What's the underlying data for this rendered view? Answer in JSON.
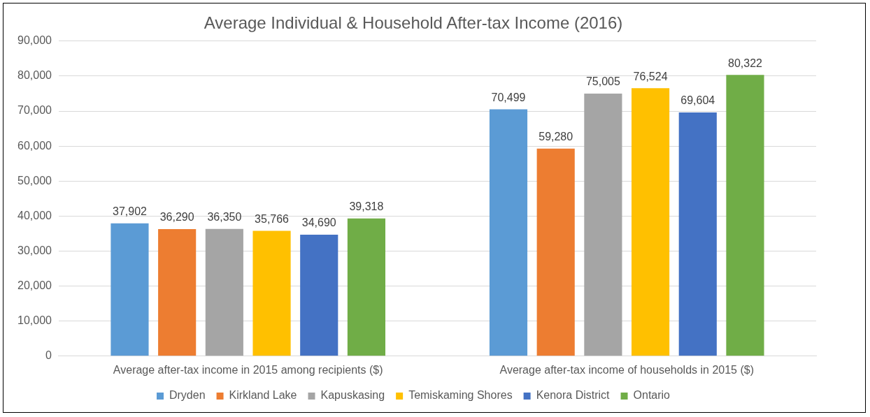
{
  "chart_data": {
    "type": "bar",
    "title": "Average Individual & Household After-tax Income (2016)",
    "categories": [
      "Average after-tax income in 2015 among recipients ($)",
      "Average after-tax income of households in 2015 ($)"
    ],
    "series": [
      {
        "name": "Dryden",
        "color": "#5b9bd5",
        "values": [
          37902,
          70499
        ],
        "value_labels": [
          "37,902",
          "70,499"
        ]
      },
      {
        "name": "Kirkland Lake",
        "color": "#ed7d31",
        "values": [
          36290,
          59280
        ],
        "value_labels": [
          "36,290",
          "59,280"
        ]
      },
      {
        "name": "Kapuskasing",
        "color": "#a5a5a5",
        "values": [
          36350,
          75005
        ],
        "value_labels": [
          "36,350",
          "75,005"
        ]
      },
      {
        "name": "Temiskaming Shores",
        "color": "#ffc000",
        "values": [
          35766,
          76524
        ],
        "value_labels": [
          "35,766",
          "76,524"
        ]
      },
      {
        "name": "Kenora District",
        "color": "#4472c4",
        "values": [
          34690,
          69604
        ],
        "value_labels": [
          "34,690",
          "69,604"
        ]
      },
      {
        "name": "Ontario",
        "color": "#70ad47",
        "values": [
          39318,
          80322
        ],
        "value_labels": [
          "39,318",
          "80,322"
        ]
      }
    ],
    "ylim": [
      0,
      90000
    ],
    "yticks": [
      0,
      {
        "value": 10000,
        "label": "10,000"
      },
      {
        "value": 20000,
        "label": "20,000"
      },
      {
        "value": 30000,
        "label": "30,000"
      },
      {
        "value": 40000,
        "label": "40,000"
      },
      {
        "value": 50000,
        "label": "50,000"
      },
      {
        "value": 60000,
        "label": "60,000"
      },
      {
        "value": 70000,
        "label": "70,000"
      },
      {
        "value": 80000,
        "label": "80,000"
      },
      {
        "value": 90000,
        "label": "90,000"
      }
    ],
    "grid": "y",
    "legend": "bottom"
  }
}
